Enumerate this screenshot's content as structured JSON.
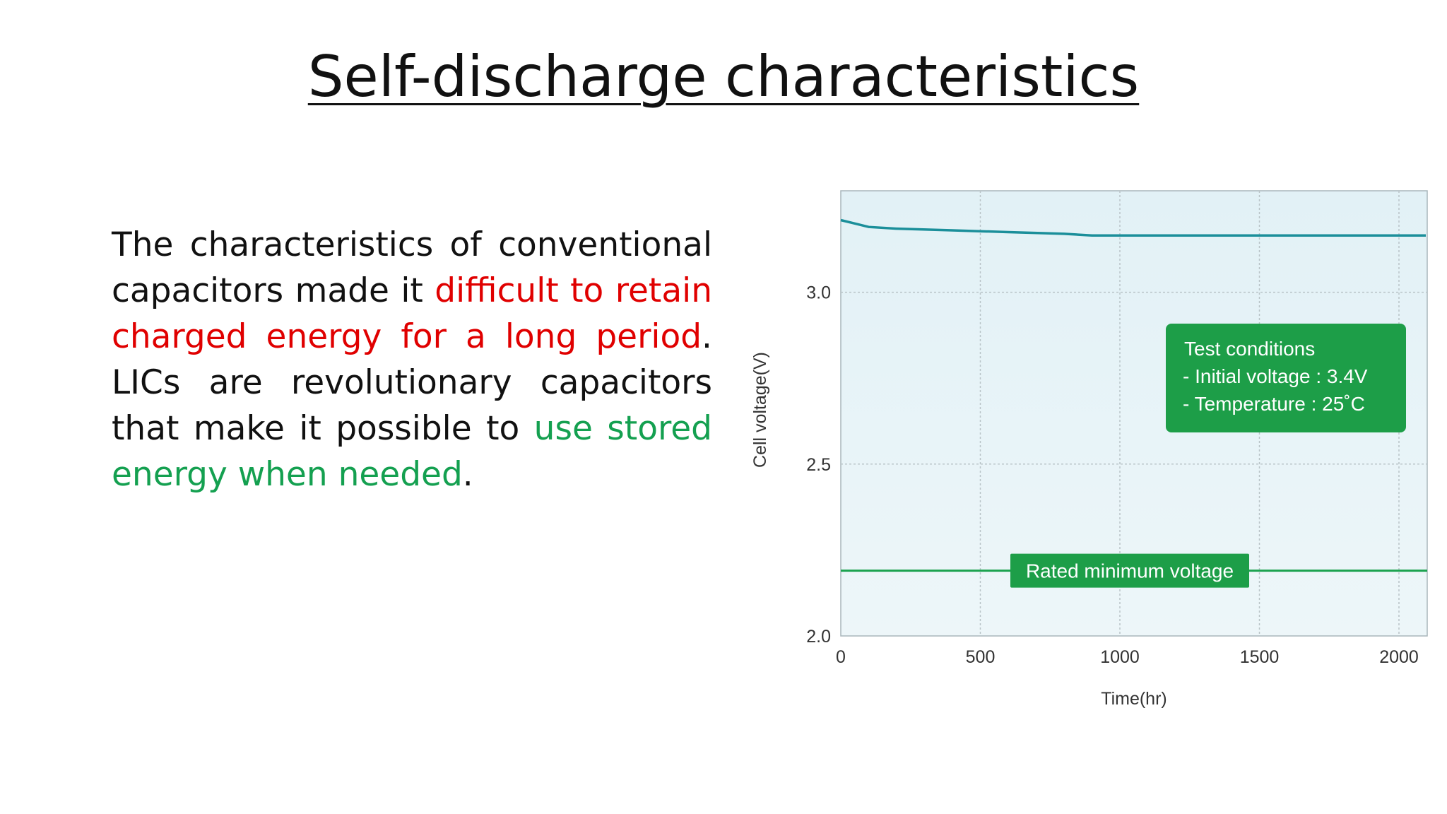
{
  "slide": {
    "title": "Self-discharge characteristics",
    "paragraph": [
      {
        "text": "The characteristics of conventional capacitors made it ",
        "color": "default"
      },
      {
        "text": "difficult to retain charged energy for a long period",
        "color": "red"
      },
      {
        "text": ". LICs are revolutionary capacitors that make it possible to ",
        "color": "default"
      },
      {
        "text": "use stored energy when needed",
        "color": "green"
      },
      {
        "text": ".",
        "color": "default"
      }
    ]
  },
  "colors": {
    "red": "#e00000",
    "green": "#14a050",
    "curve": "#1b8f9a",
    "min_line": "#1aa24e",
    "box_green": "#1d9e48"
  },
  "chart_data": {
    "type": "line",
    "xlabel": "Time(hr)",
    "ylabel": "Cell voltage(V)",
    "xlim": [
      0,
      2000
    ],
    "ylim": [
      2.0,
      3.25
    ],
    "xticks": [
      "0",
      "500",
      "1000",
      "1500",
      "2000"
    ],
    "yticks": [
      "2.0",
      "2.5",
      "3.0"
    ],
    "grid": true,
    "series": [
      {
        "x": [
          0,
          50,
          100,
          200,
          400,
          600,
          800,
          900,
          1000,
          1200,
          1400,
          1600,
          1800,
          2000
        ],
        "y": [
          3.21,
          3.2,
          3.19,
          3.185,
          3.18,
          3.175,
          3.17,
          3.165,
          3.165,
          3.165,
          3.165,
          3.165,
          3.165,
          3.165
        ]
      }
    ],
    "reference_line": {
      "y": 2.19,
      "label": "Rated minimum voltage"
    },
    "annotation_box": {
      "lines": [
        "Test conditions",
        "- Initial voltage : 3.4V",
        "- Temperature : 25˚C"
      ]
    }
  }
}
